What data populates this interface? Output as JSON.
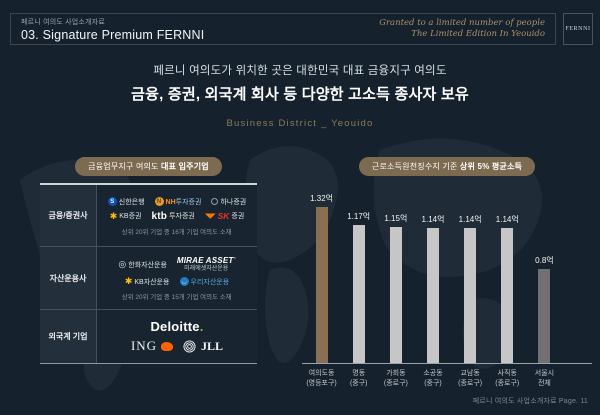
{
  "header": {
    "breadcrumb": "페르니 여의도 사업소개자료",
    "title": "03. Signature Premium FERNNI",
    "tagline_line1": "Granted to a limited number of people",
    "tagline_line2": "The Limited Edition In Yeouido",
    "logo": "FERNNI"
  },
  "headline": {
    "line1": "페르니 여의도가 위치한 곳은 대한민국 대표 금융지구 여의도",
    "line2": "금융, 증권, 외국계 회사 등 다양한 고소득 종사자 보유",
    "subtitle": "Business District _ Yeouido"
  },
  "left_panel": {
    "header_normal": "금융업무지구 여의도 ",
    "header_bold": "대표 입주기업",
    "row1": {
      "category": "금융/증권사",
      "shinhan": "신한은행",
      "nh_prefix": "NH",
      "nh_suffix": "투자증권",
      "hana": "하나증권",
      "kb": "KB증권",
      "ktb_prefix": "ktb",
      "ktb_suffix": "투자증권",
      "sk_prefix": "SK",
      "sk_suffix": "증권",
      "note": "상위 20위 기업 중 16개 기업 여의도 소재"
    },
    "row2": {
      "category": "자산운용사",
      "hanwha": "한화자산운용",
      "mirae_main": "MIRAE ASSET",
      "mirae_sub": "미래에셋자산운용",
      "kb": "KB자산운용",
      "woori": "우리자산운용",
      "note": "상위 20위 기업 중 15개 기업 여의도 소재"
    },
    "row3": {
      "category": "외국계 기업",
      "deloitte": "Deloitte",
      "deloitte_dot": ".",
      "ing": "ING",
      "jll": "JLL"
    }
  },
  "right_panel": {
    "header_normal": "근로소득원천징수지 기준 ",
    "header_bold": "상위 5% 평균소득"
  },
  "chart_data": {
    "type": "bar",
    "title": "근로소득원천징수지 기준 상위 5% 평균소득",
    "unit": "억",
    "values": [
      1.32,
      1.17,
      1.15,
      1.14,
      1.14,
      1.14,
      0.8
    ],
    "value_labels": [
      "1.32억",
      "1.17억",
      "1.15억",
      "1.14억",
      "1.14억",
      "1.14억",
      "0.8억"
    ],
    "categories": [
      {
        "label": "여의도동",
        "sub": "(영등포구)"
      },
      {
        "label": "명동",
        "sub": "(중구)"
      },
      {
        "label": "가회동",
        "sub": "(종로구)"
      },
      {
        "label": "소공동",
        "sub": "(중구)"
      },
      {
        "label": "교남동",
        "sub": "(종로구)"
      },
      {
        "label": "사직동",
        "sub": "(종로구)"
      },
      {
        "label": "서울시",
        "sub": "전체"
      }
    ],
    "colors": [
      "#8a6f53",
      "#c6c6c6",
      "#c6c6c6",
      "#c6c6c6",
      "#c6c6c6",
      "#c6c6c6",
      "#707070"
    ],
    "ylim": [
      0,
      1.4
    ],
    "grid": false,
    "legend": false
  },
  "footer": {
    "text": "페르니 여의도 사업소개자료 Page. 11"
  }
}
